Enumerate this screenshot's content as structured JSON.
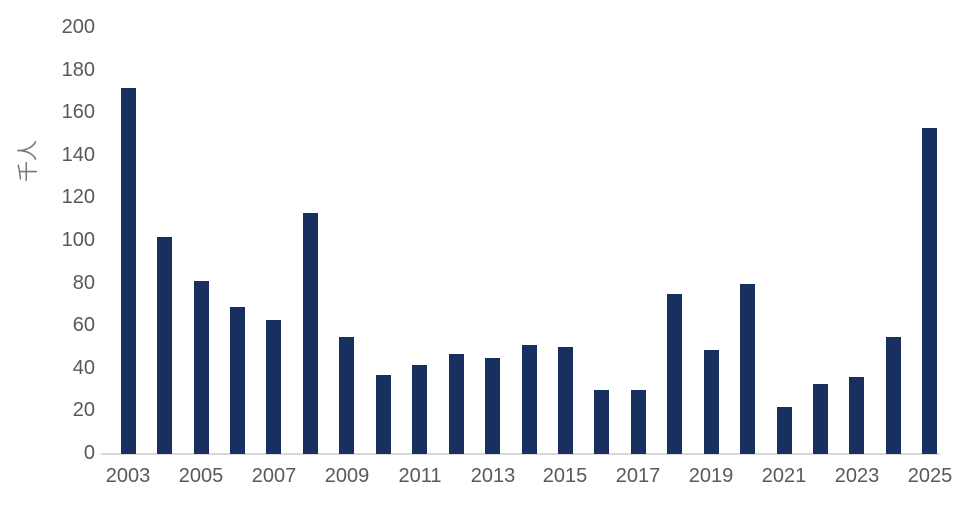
{
  "chart_data": {
    "type": "bar",
    "title": "",
    "xlabel": "",
    "ylabel": "千人",
    "categories": [
      2003,
      2004,
      2005,
      2006,
      2007,
      2008,
      2009,
      2010,
      2011,
      2012,
      2013,
      2014,
      2015,
      2016,
      2017,
      2018,
      2019,
      2020,
      2021,
      2022,
      2023,
      2024,
      2025
    ],
    "values": [
      172,
      102,
      81,
      69,
      63,
      113,
      55,
      37,
      42,
      47,
      45,
      51,
      50,
      30,
      30,
      75,
      49,
      80,
      22,
      33,
      36,
      55,
      153
    ],
    "xtick_labels": [
      "2003",
      "2005",
      "2007",
      "2009",
      "2011",
      "2013",
      "2015",
      "2017",
      "2019",
      "2021",
      "2023",
      "2025"
    ],
    "ylim": [
      0,
      200
    ],
    "ytick_step": 20,
    "grid": false,
    "legend": "none",
    "bar_color": "#18305f",
    "axis_line_color": "#d9d9d9",
    "tick_label_color": "#595959",
    "axis_title_color": "#7a7a7a",
    "background_color": "#ffffff"
  }
}
